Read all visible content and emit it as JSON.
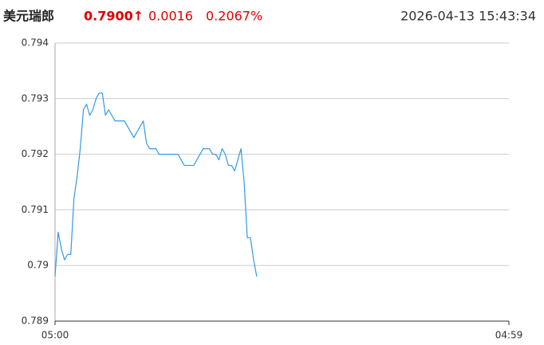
{
  "header": {
    "name": "美元瑞郎",
    "price": "0.7900↑",
    "change": "0.0016",
    "change_pct": "0.2067%",
    "time": "2026-04-13 15:43:34"
  },
  "chart_data": {
    "type": "line",
    "color": "#3399e6",
    "grid": true,
    "ylim": [
      0.789,
      0.794
    ],
    "yticks": [
      0.794,
      0.793,
      0.792,
      0.791,
      0.79,
      0.789
    ],
    "categories": [
      "05:00",
      null,
      null,
      null,
      null,
      null,
      null,
      null,
      null,
      null,
      null,
      null,
      null,
      null,
      null,
      null,
      null,
      null,
      null,
      null,
      null,
      null,
      null,
      null,
      null,
      null,
      null,
      null,
      null,
      null,
      null,
      null,
      null,
      null,
      null,
      null,
      null,
      null,
      null,
      null,
      null,
      null,
      null,
      null,
      null,
      null,
      null,
      null,
      null,
      null,
      null,
      null,
      null,
      null,
      null,
      null,
      null,
      null,
      null,
      null,
      null,
      null,
      null,
      null,
      null,
      null,
      null,
      null,
      null,
      null,
      null,
      null,
      null,
      null,
      null,
      null,
      null,
      null,
      null,
      null,
      null,
      null,
      null,
      null,
      null,
      null,
      null,
      null,
      null,
      null,
      null,
      null,
      null,
      null,
      null,
      null,
      null,
      null,
      null,
      null,
      null,
      null,
      null,
      null,
      null,
      null,
      null,
      null,
      null,
      null,
      null,
      null,
      null,
      null,
      null,
      null,
      null,
      null,
      null,
      null,
      null,
      null,
      null,
      null,
      null,
      null,
      null,
      null,
      null,
      null,
      null,
      null,
      null,
      null,
      null,
      null,
      null,
      null,
      null,
      null,
      null,
      null,
      null,
      null,
      "04:59"
    ],
    "values": [
      0.7898,
      0.7906,
      0.7903,
      0.7901,
      0.7902,
      0.7902,
      0.7912,
      0.7916,
      0.7921,
      0.7928,
      0.7929,
      0.7927,
      0.7928,
      0.793,
      0.7931,
      0.7931,
      0.7927,
      0.7928,
      0.7927,
      0.7926,
      0.7926,
      0.7926,
      0.7926,
      0.7925,
      0.7924,
      0.7923,
      0.7924,
      0.7925,
      0.7926,
      0.7922,
      0.7921,
      0.7921,
      0.7921,
      0.792,
      0.792,
      0.792,
      0.792,
      0.792,
      0.792,
      0.792,
      0.7919,
      0.7918,
      0.7918,
      0.7918,
      0.7918,
      0.7919,
      0.792,
      0.7921,
      0.7921,
      0.7921,
      0.792,
      0.792,
      0.7919,
      0.7921,
      0.792,
      0.7918,
      0.7918,
      0.7917,
      0.7919,
      0.7921,
      0.7915,
      0.7905,
      0.7905,
      0.7901,
      0.7898,
      null,
      null,
      null,
      null,
      null,
      null,
      null,
      null,
      null,
      null,
      null,
      null,
      null,
      null,
      null,
      null,
      null,
      null,
      null,
      null,
      null,
      null,
      null,
      null,
      null,
      null,
      null,
      null,
      null,
      null,
      null,
      null,
      null,
      null,
      null,
      null,
      null,
      null,
      null,
      null,
      null,
      null,
      null,
      null,
      null,
      null,
      null,
      null,
      null,
      null,
      null,
      null,
      null,
      null,
      null,
      null,
      null,
      null,
      null,
      null,
      null,
      null,
      null,
      null,
      null,
      null,
      null,
      null,
      null,
      null,
      null,
      null,
      null,
      null,
      null,
      null,
      null,
      null,
      null,
      null
    ]
  }
}
